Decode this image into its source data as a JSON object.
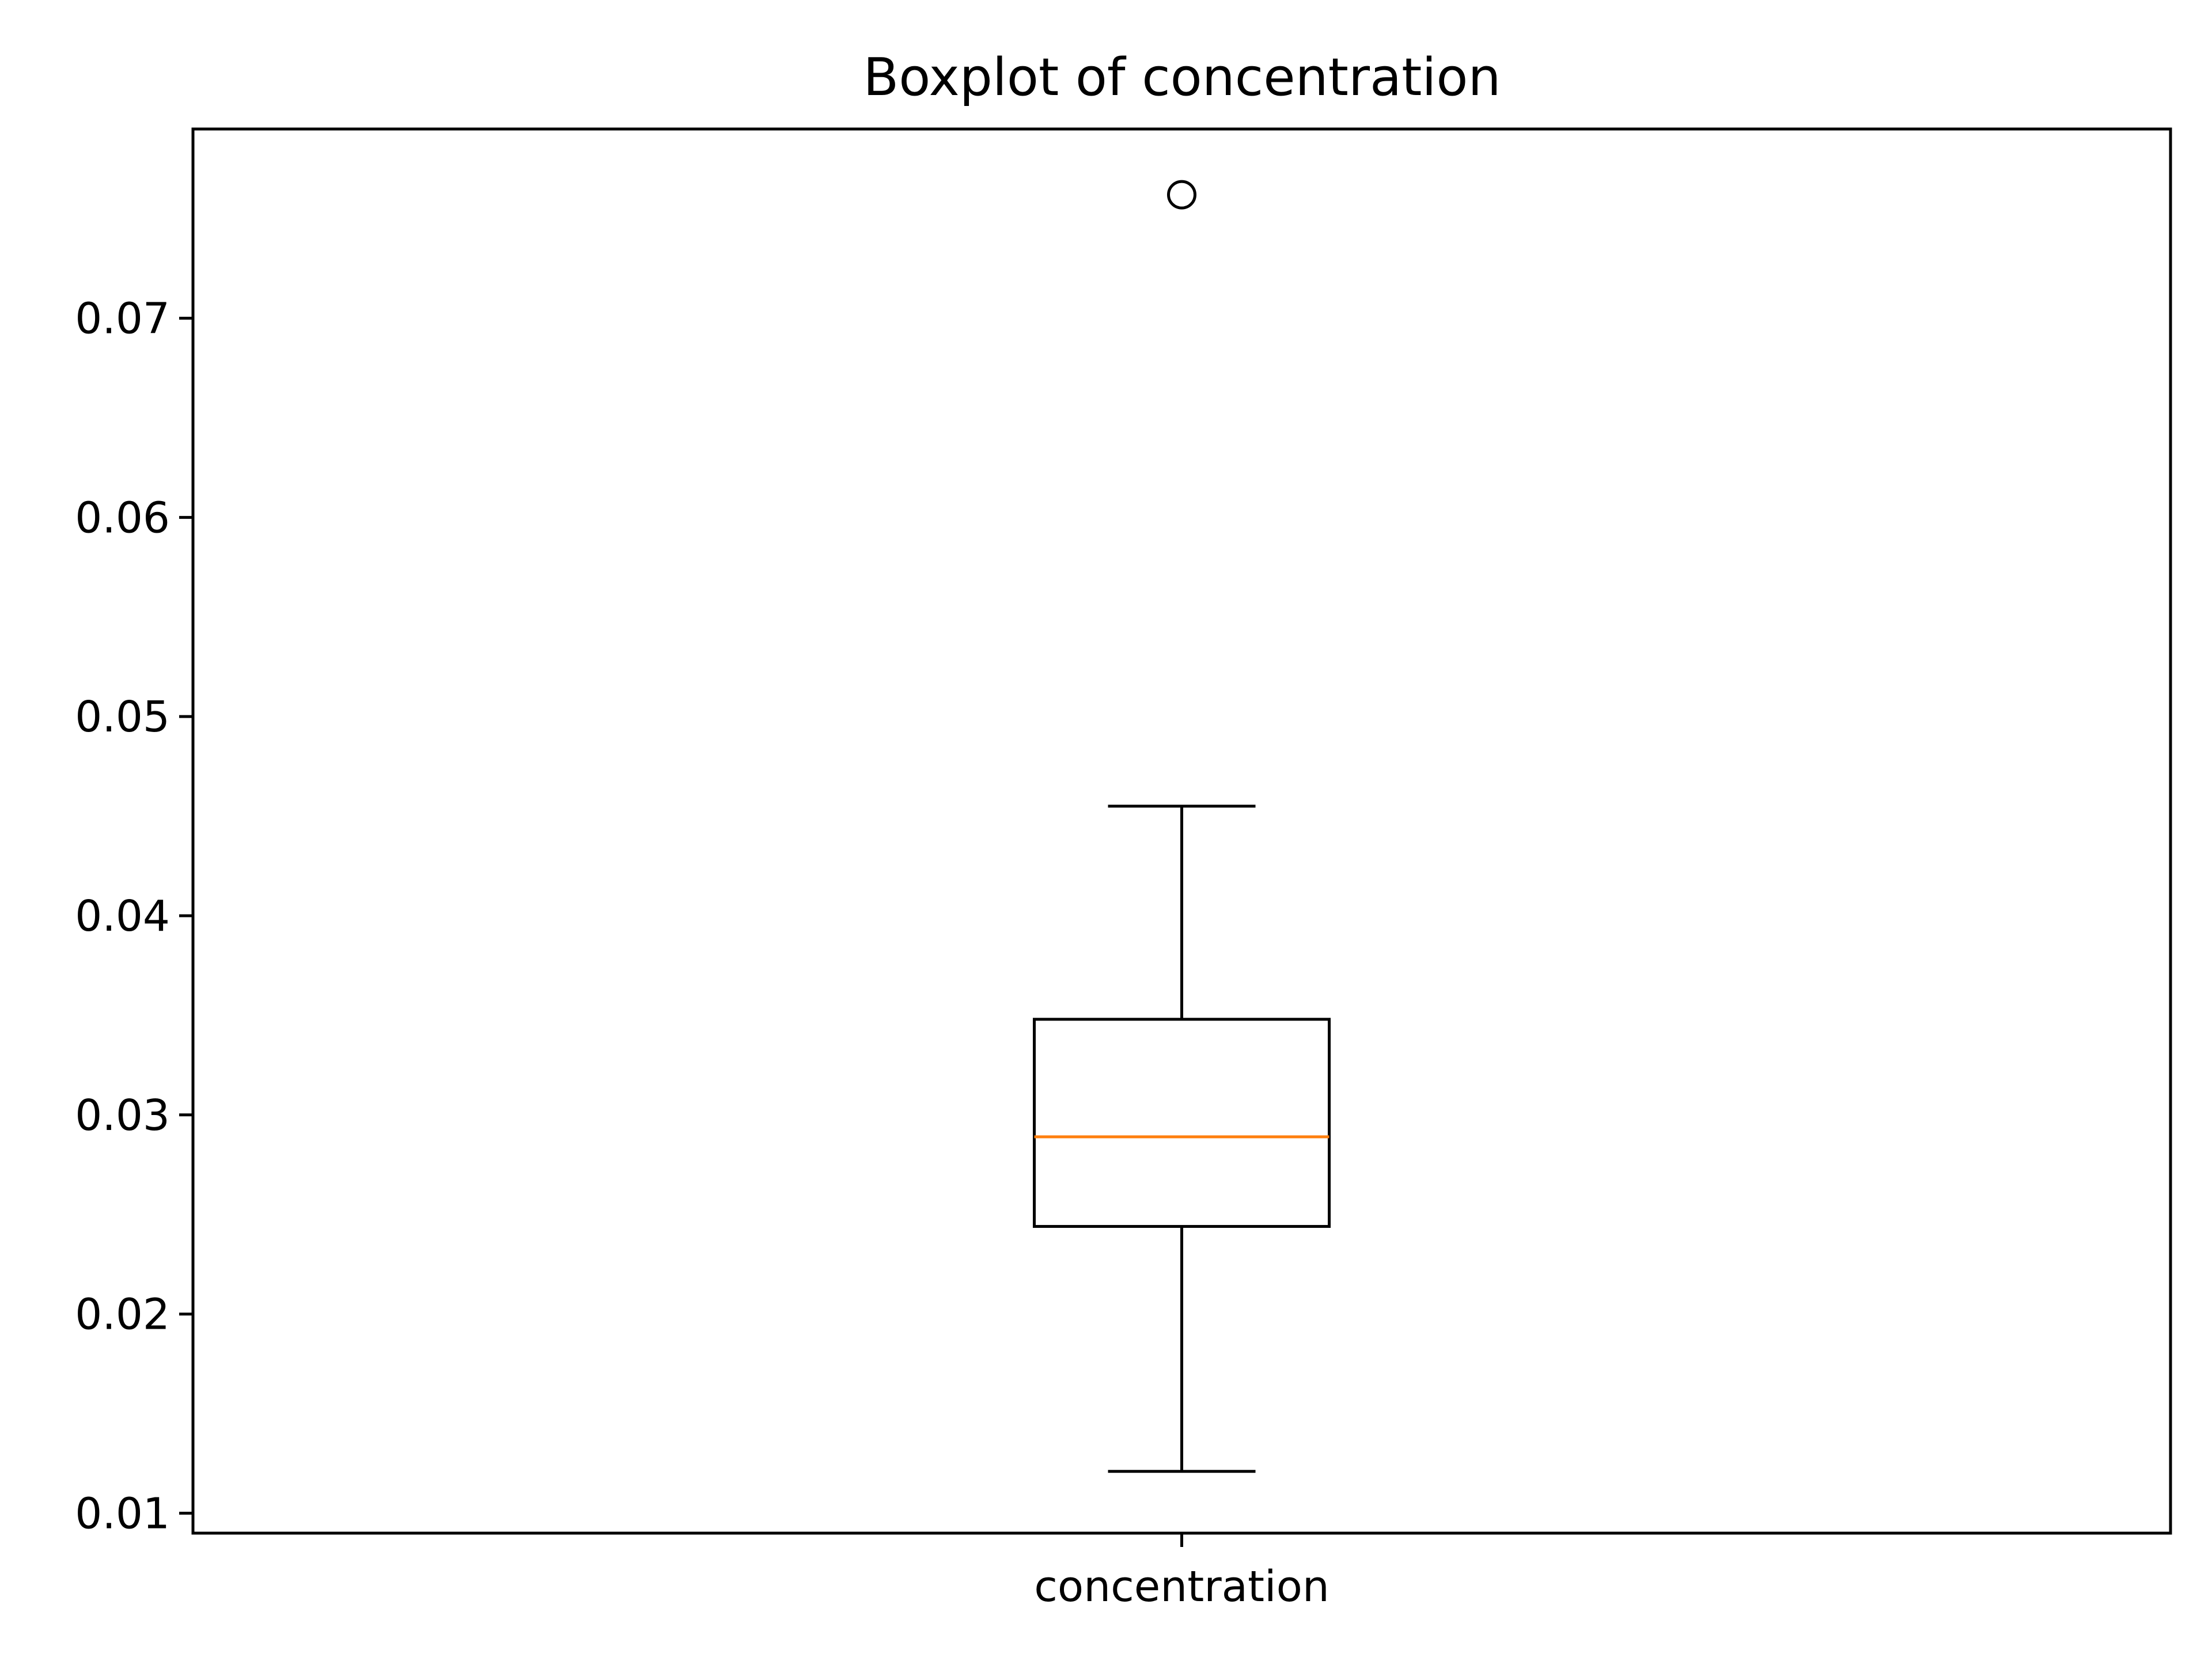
{
  "chart_data": {
    "type": "box",
    "title": "Boxplot of concentration",
    "xlabel": "",
    "ylabel": "",
    "categories": [
      "concentration"
    ],
    "boxes": [
      {
        "category": "concentration",
        "whisker_low": 0.0121,
        "q1": 0.0244,
        "median": 0.0289,
        "q3": 0.0348,
        "whisker_high": 0.0455,
        "outliers": [
          0.0762
        ]
      }
    ],
    "ylim": [
      0.009,
      0.0795
    ],
    "yticks": [
      0.01,
      0.02,
      0.03,
      0.04,
      0.05,
      0.06,
      0.07
    ],
    "ytick_labels": [
      "0.01",
      "0.02",
      "0.03",
      "0.04",
      "0.05",
      "0.06",
      "0.07"
    ],
    "grid": false,
    "colors": {
      "box": "#000000",
      "median": "#ff7f0e",
      "outlier": "#000000"
    }
  }
}
